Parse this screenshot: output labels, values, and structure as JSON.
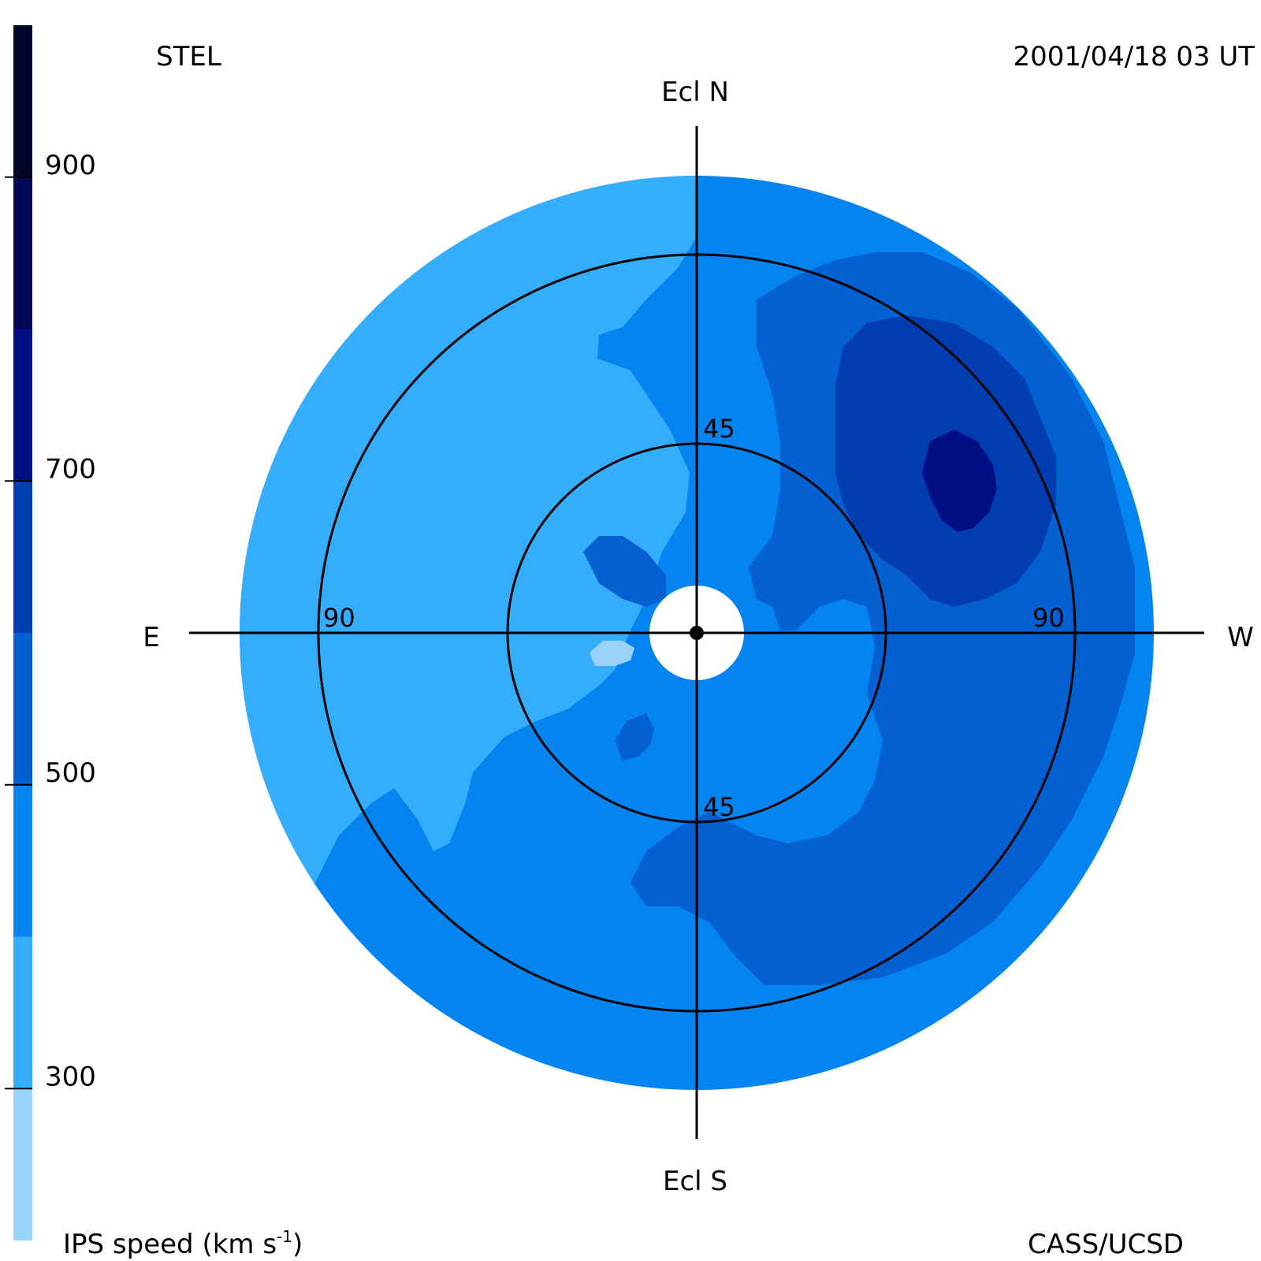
{
  "header": {
    "observatory": "STEL",
    "datetime": "2001/04/18 03 UT"
  },
  "footer": {
    "credit": "CASS/UCSD"
  },
  "colorbar": {
    "label_main": "IPS speed (km s",
    "label_sup": "-1",
    "label_close": ")",
    "range": [
      200,
      1000
    ],
    "tick_labels": [
      "900",
      "700",
      "500",
      "300"
    ],
    "tick_values": [
      900,
      700,
      500,
      300
    ],
    "bins": [
      {
        "from": 200,
        "to": 300,
        "color": "#99d3fb"
      },
      {
        "from": 300,
        "to": 400,
        "color": "#33adfc"
      },
      {
        "from": 400,
        "to": 500,
        "color": "#0484f0"
      },
      {
        "from": 500,
        "to": 600,
        "color": "#0360d1"
      },
      {
        "from": 600,
        "to": 700,
        "color": "#003db1"
      },
      {
        "from": 700,
        "to": 800,
        "color": "#000e84"
      },
      {
        "from": 800,
        "to": 900,
        "color": "#000754"
      },
      {
        "from": 900,
        "to": 1000,
        "color": "#00092c"
      }
    ]
  },
  "map": {
    "direction_labels": {
      "north": "Ecl N",
      "south": "Ecl S",
      "east": "E",
      "west": "W"
    },
    "elongation_rings": [
      45,
      90
    ],
    "ring_labels": {
      "north_45": "45",
      "south_45": "45",
      "east_90": "90",
      "west_90": "90"
    }
  }
}
